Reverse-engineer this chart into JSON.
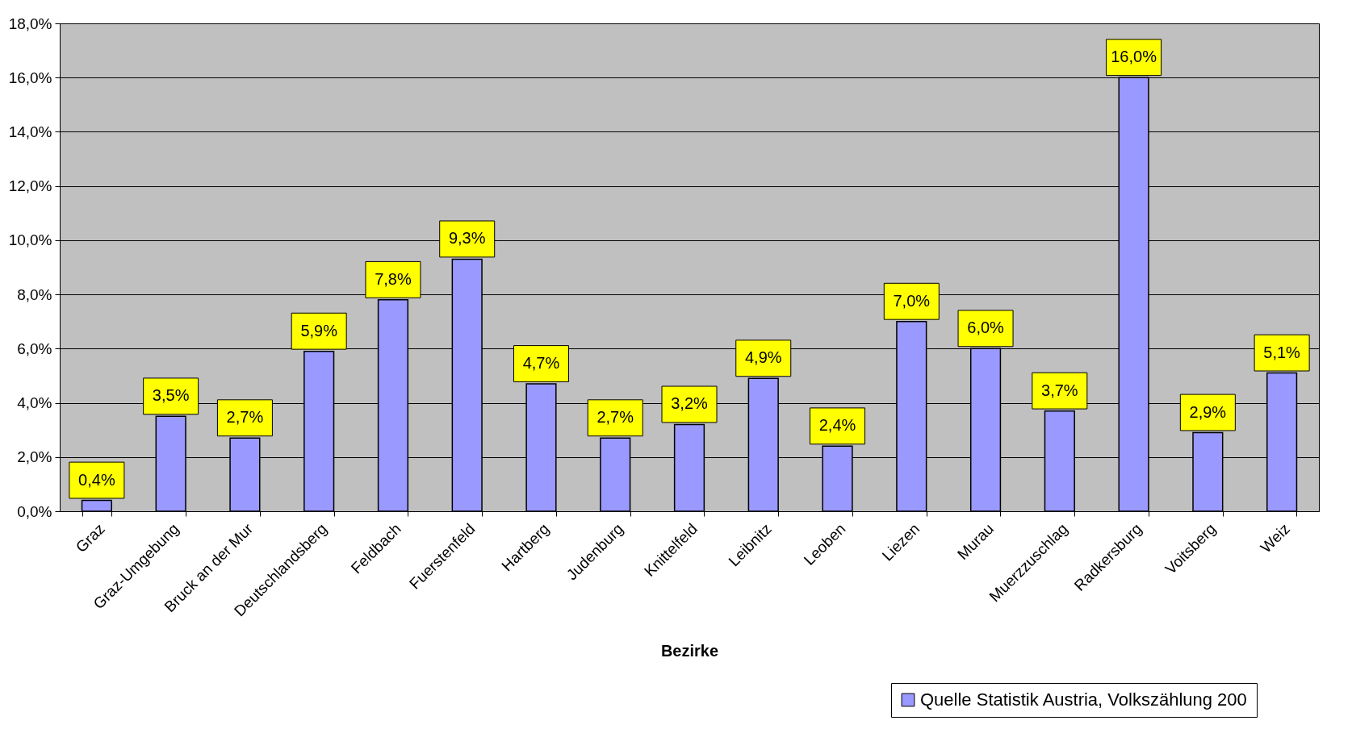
{
  "chart_data": {
    "type": "bar",
    "xlabel": "Bezirke",
    "categories": [
      "Graz",
      "Graz-Umgebung",
      "Bruck an der Mur",
      "Deutschlandsberg",
      "Feldbach",
      "Fuerstenfeld",
      "Hartberg",
      "Judenburg",
      "Knittelfeld",
      "Leibnitz",
      "Leoben",
      "Liezen",
      "Murau",
      "Muerzzuschlag",
      "Radkersburg",
      "Voitsberg",
      "Weiz"
    ],
    "series": [
      {
        "name": "Quelle Statistik Austria, Volkszählung 200",
        "color": "#9999ff",
        "values": [
          0.4,
          3.5,
          2.7,
          5.9,
          7.8,
          9.3,
          4.7,
          2.7,
          3.2,
          4.9,
          2.4,
          7.0,
          6.0,
          3.7,
          16.0,
          2.9,
          5.1
        ],
        "value_labels": [
          "0,4%",
          "3,5%",
          "2,7%",
          "5,9%",
          "7,8%",
          "9,3%",
          "4,7%",
          "2,7%",
          "3,2%",
          "4,9%",
          "2,4%",
          "7,0%",
          "6,0%",
          "3,7%",
          "16,0%",
          "2,9%",
          "5,1%"
        ]
      }
    ],
    "ylim": [
      0,
      18
    ],
    "yticks": [
      {
        "value": 0,
        "label": "0,0%"
      },
      {
        "value": 2,
        "label": "2,0%"
      },
      {
        "value": 4,
        "label": "4,0%"
      },
      {
        "value": 6,
        "label": "6,0%"
      },
      {
        "value": 8,
        "label": "8,0%"
      },
      {
        "value": 10,
        "label": "10,0%"
      },
      {
        "value": 12,
        "label": "12,0%"
      },
      {
        "value": 14,
        "label": "14,0%"
      },
      {
        "value": 16,
        "label": "16,0%"
      },
      {
        "value": 18,
        "label": "18,0%"
      }
    ],
    "grid": "y",
    "legend": "bottom right"
  }
}
